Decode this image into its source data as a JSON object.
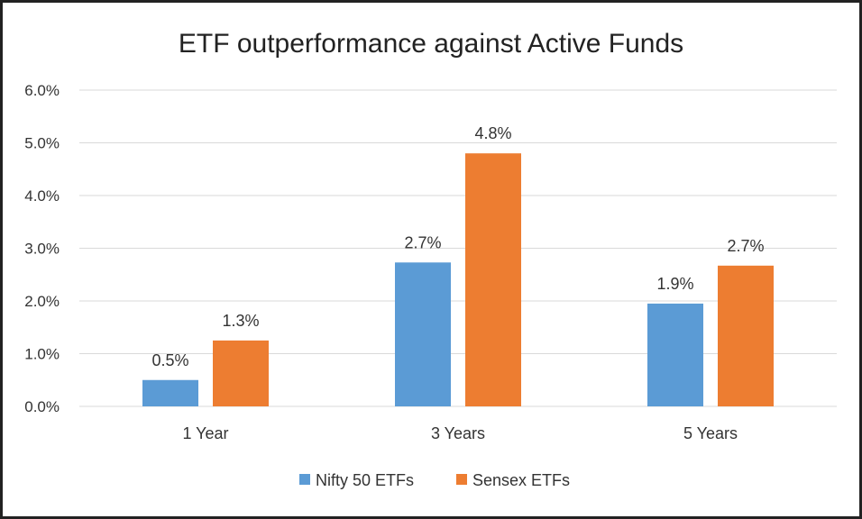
{
  "chart_data": {
    "type": "bar",
    "title": "ETF outperformance against Active Funds",
    "categories": [
      "1 Year",
      "3 Years",
      "5 Years"
    ],
    "series": [
      {
        "name": "Nifty 50 ETFs",
        "color": "#5B9BD5",
        "values": [
          0.5,
          2.73,
          1.95
        ],
        "labels": [
          "0.5%",
          "2.7%",
          "1.9%"
        ]
      },
      {
        "name": "Sensex ETFs",
        "color": "#ED7D31",
        "values": [
          1.25,
          4.8,
          2.67
        ],
        "labels": [
          "1.3%",
          "4.8%",
          "2.7%"
        ]
      }
    ],
    "ylim": [
      0,
      6
    ],
    "yticks": [
      0,
      1,
      2,
      3,
      4,
      5,
      6
    ],
    "ytick_labels": [
      "0.0%",
      "1.0%",
      "2.0%",
      "3.0%",
      "4.0%",
      "5.0%",
      "6.0%"
    ],
    "unit": "%",
    "grid": true,
    "legend_position": "bottom",
    "gridline_color": "#D9D9D9"
  }
}
